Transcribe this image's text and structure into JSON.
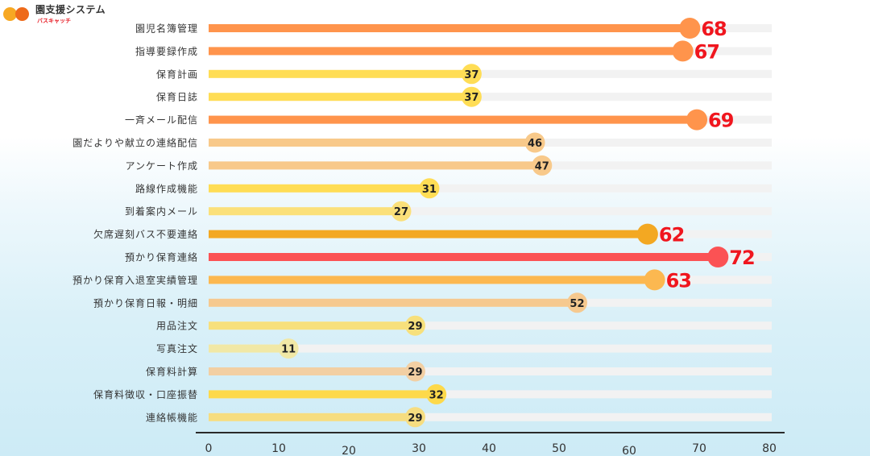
{
  "logo": {
    "title": "園支援システム",
    "subtitle": "バスキャッチ",
    "colors": [
      "#f7a823",
      "#ee6a1a"
    ]
  },
  "chart_data": {
    "type": "bar",
    "style": "lollipop-horizontal",
    "categories": [
      "園児名簿管理",
      "指導要録作成",
      "保育計画",
      "保育日誌",
      "一斉メール配信",
      "園だよりや献立の連絡配信",
      "アンケート作成",
      "路線作成機能",
      "到着案内メール",
      "欠席遅刻バス不要連絡",
      "預かり保育連絡",
      "預かり保育入退室実績管理",
      "預かり保育日報・明細",
      "用品注文",
      "写真注文",
      "保育料計算",
      "保育料徴収・口座振替",
      "連絡帳機能"
    ],
    "values": [
      68,
      67,
      37,
      37,
      69,
      46,
      47,
      31,
      27,
      62,
      72,
      63,
      52,
      29,
      11,
      29,
      32,
      29
    ],
    "colors": [
      "#ff944c",
      "#ff944c",
      "#ffdd55",
      "#ffdd55",
      "#ff944c",
      "#f8c98a",
      "#f8c98a",
      "#ffdd55",
      "#fbe07a",
      "#f3a822",
      "#fb5254",
      "#fcb850",
      "#f6c98f",
      "#f7e07c",
      "#f1e8a6",
      "#f2cfa3",
      "#fdd94a",
      "#f6dd80"
    ],
    "highlight_threshold": 60,
    "highlight_label_color": "#f0161e",
    "track_color": "#f2f2f2",
    "xlim": [
      0,
      80
    ],
    "xticks": [
      0,
      10,
      20,
      30,
      40,
      50,
      60,
      70,
      80
    ],
    "title": "",
    "xlabel": "",
    "ylabel": "",
    "grid": false
  }
}
